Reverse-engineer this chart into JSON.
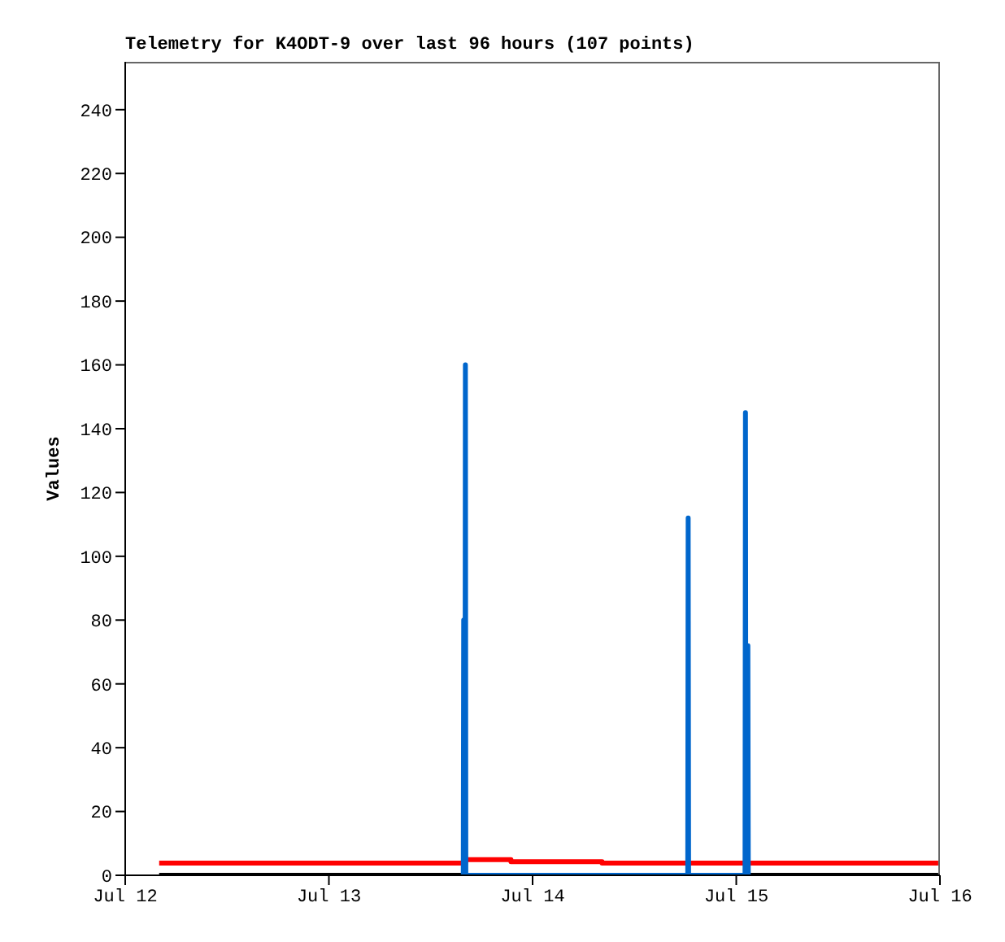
{
  "chart_data": {
    "type": "line",
    "title": "Telemetry for K4ODT-9 over last 96 hours (107 points)",
    "ylabel": "Values",
    "xlim": [
      "--07-12",
      "--07-16"
    ],
    "xticks": [
      {
        "value": "--07-12",
        "label": "Jul 12"
      },
      {
        "value": "--07-13",
        "label": "Jul 13"
      },
      {
        "value": "--07-14",
        "label": "Jul 14"
      },
      {
        "value": "--07-15",
        "label": "Jul 15"
      },
      {
        "value": "--07-16",
        "label": "Jul 16"
      }
    ],
    "ylim": [
      0,
      255
    ],
    "yticks": [
      0,
      20,
      40,
      60,
      80,
      100,
      120,
      140,
      160,
      180,
      200,
      220,
      240
    ],
    "series": [
      {
        "color": "#000000",
        "x": [
          "--07-12T04:00",
          "--07-15T23:48"
        ],
        "values": [
          0,
          0
        ]
      },
      {
        "type": "step",
        "color": "#ff0000",
        "x": [
          "--07-12T04:00",
          "--07-13T16:05",
          "--07-13T21:27",
          "--07-14T08:11",
          "--07-15T23:48"
        ],
        "values": [
          3.8,
          4.9,
          4.3,
          3.8,
          3.8
        ]
      },
      {
        "color": "#0066cc",
        "x": [
          "--07-13T15:50",
          "--07-13T15:53",
          "--07-13T15:56",
          "--07-13T16:02",
          "--07-13T16:05",
          "--07-13T16:08",
          "--07-14T18:17",
          "--07-14T18:20",
          "--07-14T18:23",
          "--07-15T01:02",
          "--07-15T01:05",
          "--07-15T01:08",
          "--07-15T01:19",
          "--07-15T01:22",
          "--07-15T01:25"
        ],
        "values": [
          0,
          80,
          0,
          0,
          160,
          0,
          0,
          112,
          0,
          0,
          145,
          0,
          0,
          72,
          0
        ]
      }
    ]
  }
}
